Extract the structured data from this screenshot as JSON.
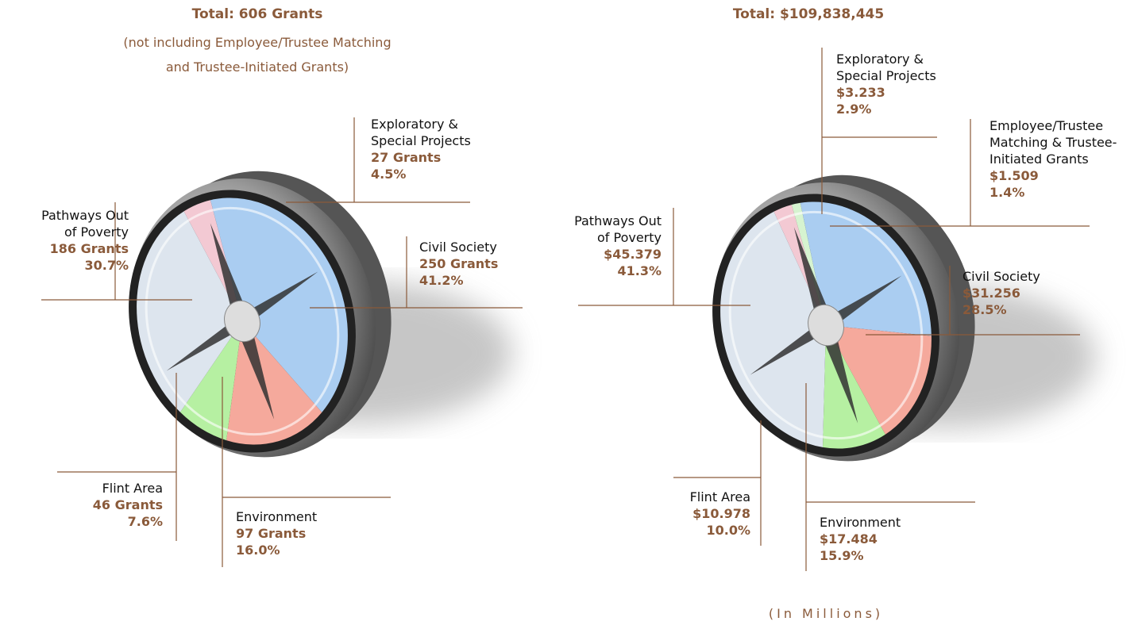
{
  "chart_data": [
    {
      "type": "pie",
      "title": "Total:  606 Grants",
      "subtitle": "(not including Employee/Trustee Matching\nand Trustee-Initiated Grants)",
      "categories": [
        "Exploratory &\nSpecial Projects",
        "Civil Society",
        "Environment",
        "Flint Area",
        "Pathways Out\nof Poverty"
      ],
      "values": [
        27,
        250,
        97,
        46,
        186
      ],
      "value_labels": [
        "27 Grants",
        "250 Grants",
        "97 Grants",
        "46 Grants",
        "186 Grants"
      ],
      "percents": [
        4.5,
        41.2,
        16.0,
        7.6,
        30.7
      ],
      "percent_labels": [
        "4.5%",
        "41.2%",
        "16.0%",
        "7.6%",
        "30.7%"
      ],
      "colors": [
        "#f3c9d3",
        "#aacdf1",
        "#f5a99c",
        "#b6f0a2",
        "#dde5ee"
      ]
    },
    {
      "type": "pie",
      "title": "Total:  $109,838,445",
      "note": "(In Millions)",
      "categories": [
        "Exploratory &\nSpecial Projects",
        "Employee/Trustee\nMatching & Trustee-\nInitiated Grants",
        "Civil Society",
        "Environment",
        "Flint Area",
        "Pathways Out\nof Poverty"
      ],
      "values": [
        3.233,
        1.509,
        31.256,
        17.484,
        10.978,
        45.379
      ],
      "value_labels": [
        "$3.233",
        "$1.509",
        "$31.256",
        "$17.484",
        "$10.978",
        "$45.379"
      ],
      "percents": [
        2.9,
        1.4,
        28.5,
        15.9,
        10.0,
        41.3
      ],
      "percent_labels": [
        "2.9%",
        "1.4%",
        "28.5%",
        "15.9%",
        "10.0%",
        "41.3%"
      ],
      "colors": [
        "#f3c9d3",
        "#d6f3d0",
        "#aacdf1",
        "#f5a99c",
        "#b6f0a2",
        "#dde5ee"
      ]
    }
  ]
}
